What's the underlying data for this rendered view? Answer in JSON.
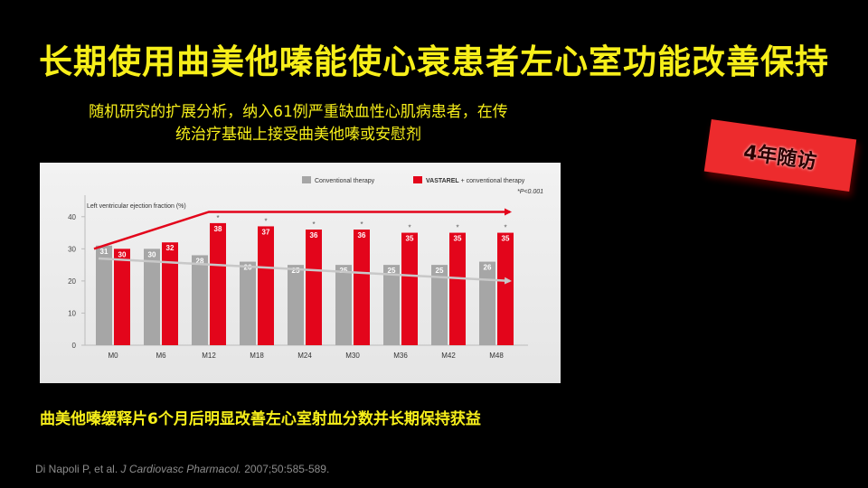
{
  "slide": {
    "title": "长期使用曲美他嗪能使心衰患者左心室功能改善保持",
    "subtitle_line1": "随机研究的扩展分析，纳入61例严重缺血性心肌病患者，在传",
    "subtitle_line2": "统治疗基础上接受曲美他嗪或安慰剂",
    "badge": "4年随访",
    "conclusion": "曲美他嗪缓释片6个月后明显改善左心室射血分数并长期保持获益",
    "citation_authors": "Di Napoli P, et al. ",
    "citation_journal": "J Cardiovasc Pharmacol.",
    "citation_rest": " 2007;50:585-589."
  },
  "chart_data": {
    "type": "bar",
    "ylabel": "Left ventricular ejection fraction (%)",
    "ylim": [
      0,
      45
    ],
    "yticks": [
      0,
      10,
      20,
      30,
      40
    ],
    "grid": false,
    "legend_position": "top-right",
    "categories": [
      "M0",
      "M6",
      "M12",
      "M18",
      "M24",
      "M30",
      "M36",
      "M42",
      "M48"
    ],
    "series": [
      {
        "name": "Conventional therapy",
        "color": "#a6a6a6",
        "values": [
          31,
          30,
          28,
          26,
          25,
          25,
          25,
          25,
          26
        ]
      },
      {
        "name": "VASTAREL + conventional therapy",
        "color": "#e3051b",
        "name_bold": "VASTAREL",
        "name_rest": " + conventional therapy",
        "values": [
          30,
          32,
          38,
          37,
          36,
          36,
          35,
          35,
          35
        ],
        "significant": [
          false,
          false,
          true,
          true,
          true,
          true,
          true,
          true,
          true
        ]
      }
    ],
    "significance_note": "*P<0.001",
    "significance_marker": "*"
  }
}
